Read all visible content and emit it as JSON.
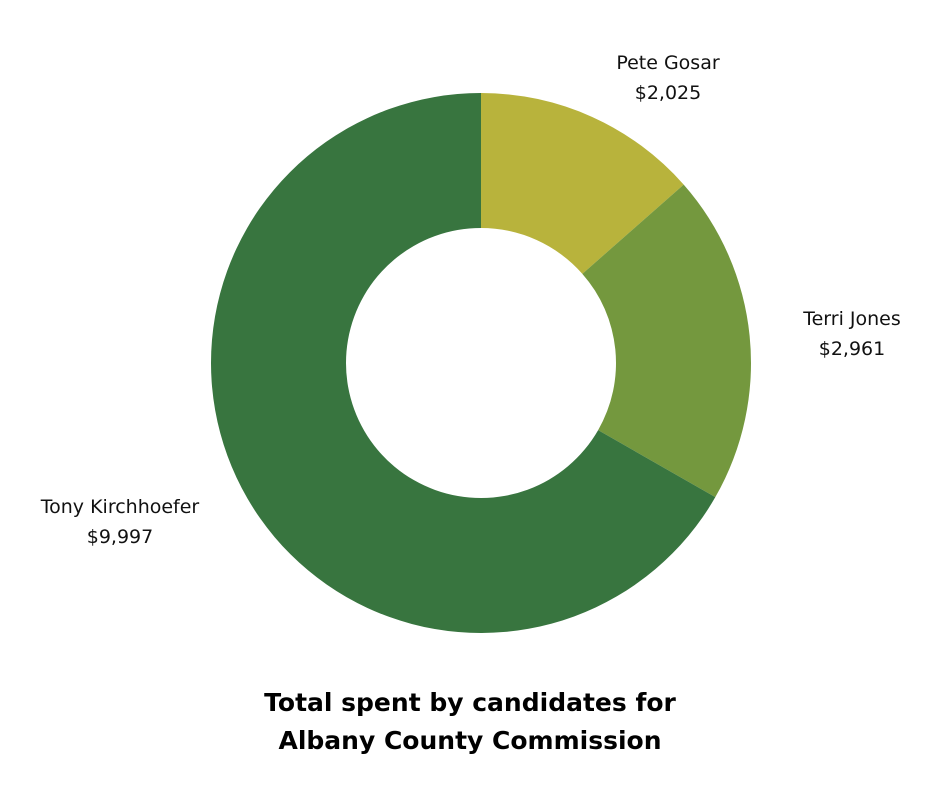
{
  "chart_data": {
    "type": "pie",
    "variant": "donut",
    "title": [
      "Total spent by candidates for",
      "Albany County Commission"
    ],
    "slices": [
      {
        "name": "Pete Gosar",
        "value": 2025,
        "value_label": "$2,025",
        "color": "#b8b33c"
      },
      {
        "name": "Terri Jones",
        "value": 2961,
        "value_label": "$2,961",
        "color": "#74983e"
      },
      {
        "name": "Tony Kirchhoefer",
        "value": 9997,
        "value_label": "$9,997",
        "color": "#38753f"
      }
    ],
    "legend": "none",
    "start_angle": "12 o'clock, clockwise"
  }
}
